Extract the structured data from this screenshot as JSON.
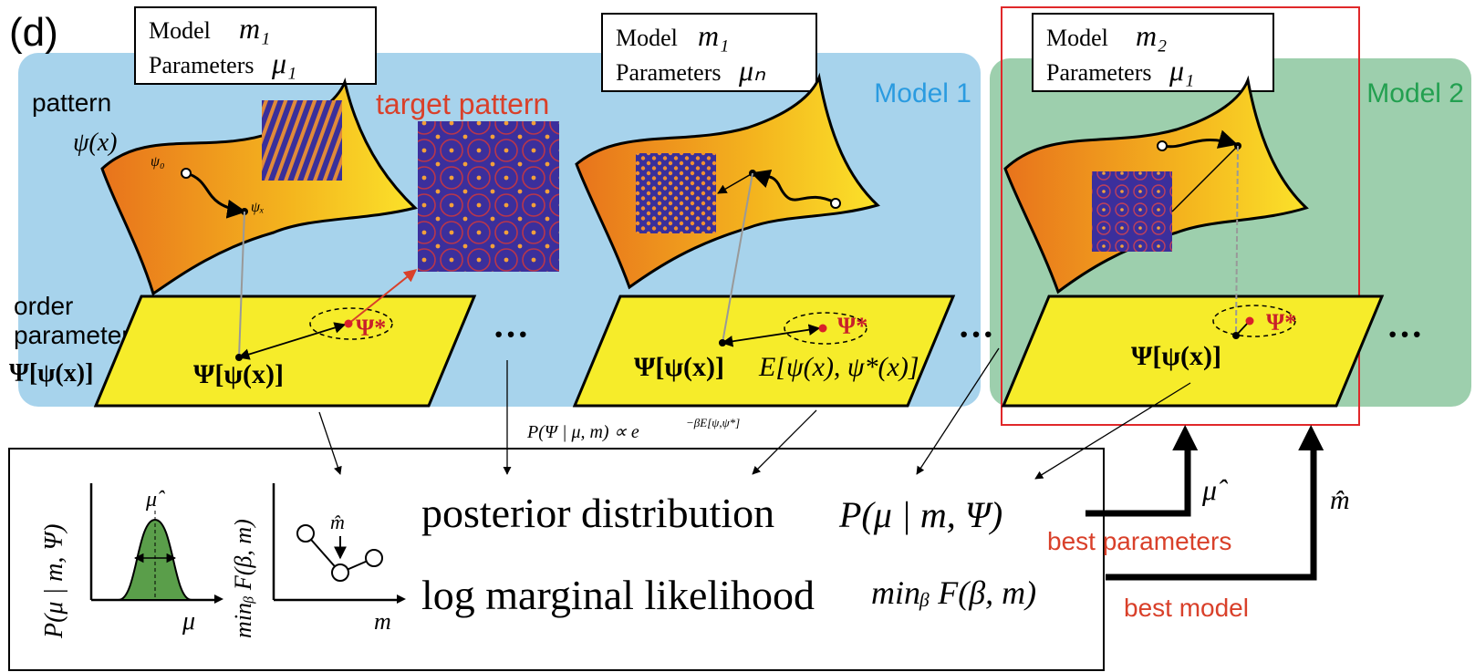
{
  "panel_label": "(d)",
  "model_regions": [
    "Model 1",
    "Model 2"
  ],
  "model_boxes": [
    {
      "model": "Model",
      "model_symbol": "m₁",
      "parameters": "Parameters",
      "parameter_symbol": "μ₁"
    },
    {
      "model": "Model",
      "model_symbol": "m₁",
      "parameters": "Parameters",
      "parameter_symbol": "μₙ"
    },
    {
      "model": "Model",
      "model_symbol": "m₂",
      "parameters": "Parameters",
      "parameter_symbol": "μ₁"
    }
  ],
  "pattern_label": {
    "word": "pattern",
    "symbol": "ψ(x)",
    "start": "ψ₀",
    "end": "ψₓ"
  },
  "target_pattern": "target pattern",
  "order_parameter_label": {
    "line1": "order",
    "line2": "parameter",
    "symbol": "Ψ[ψ(x)]"
  },
  "planes": [
    {
      "order_parameter": "Ψ[ψ(x)]",
      "target": "Ψ*"
    },
    {
      "order_parameter": "Ψ[ψ(x)]",
      "target": "Ψ*"
    },
    {
      "order_parameter": "Ψ[ψ(x)]",
      "target": "Ψ*"
    }
  ],
  "ellipses": [
    "···",
    "···",
    "···"
  ],
  "energy": "E[ψ(x), ψ*(x)]",
  "likelihood": "P(Ψ | μ, m) ∝ e",
  "likelihood_exponent": "−βE[ψ,ψ*]",
  "bottom": {
    "posterior": "posterior distribution",
    "posterior_formula": "P(μ | m, Ψ)",
    "marginal": "log marginal likelihood",
    "marginal_formula": "minᵦ F(β, m)",
    "best_parameters": "best parameters",
    "best_model": "best model",
    "mu_hat": "μ̂",
    "m_hat": "m̂",
    "inset_posterior": {
      "y_label": "P(μ | m, Ψ)",
      "x_label": "μ",
      "peak": "μ̂"
    },
    "inset_marginal": {
      "y_label": "minᵦ F(β, m)",
      "x_label": "m",
      "minimum": "m̂"
    }
  }
}
